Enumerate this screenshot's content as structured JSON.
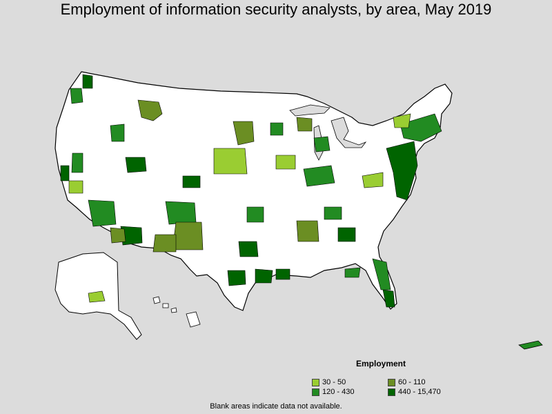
{
  "title": "Employment of information security analysts, by area, May 2019",
  "legend": {
    "title": "Employment",
    "items": [
      {
        "label": "30 - 50",
        "color": "#9acd32"
      },
      {
        "label": "60 - 110",
        "color": "#6b8e23"
      },
      {
        "label": "120 - 430",
        "color": "#228b22"
      },
      {
        "label": "440 - 15,470",
        "color": "#006400"
      }
    ]
  },
  "note": "Blank areas indicate data not available.",
  "colors": {
    "background": "#dcdcdc",
    "land": "#ffffff",
    "border": "#000000"
  }
}
